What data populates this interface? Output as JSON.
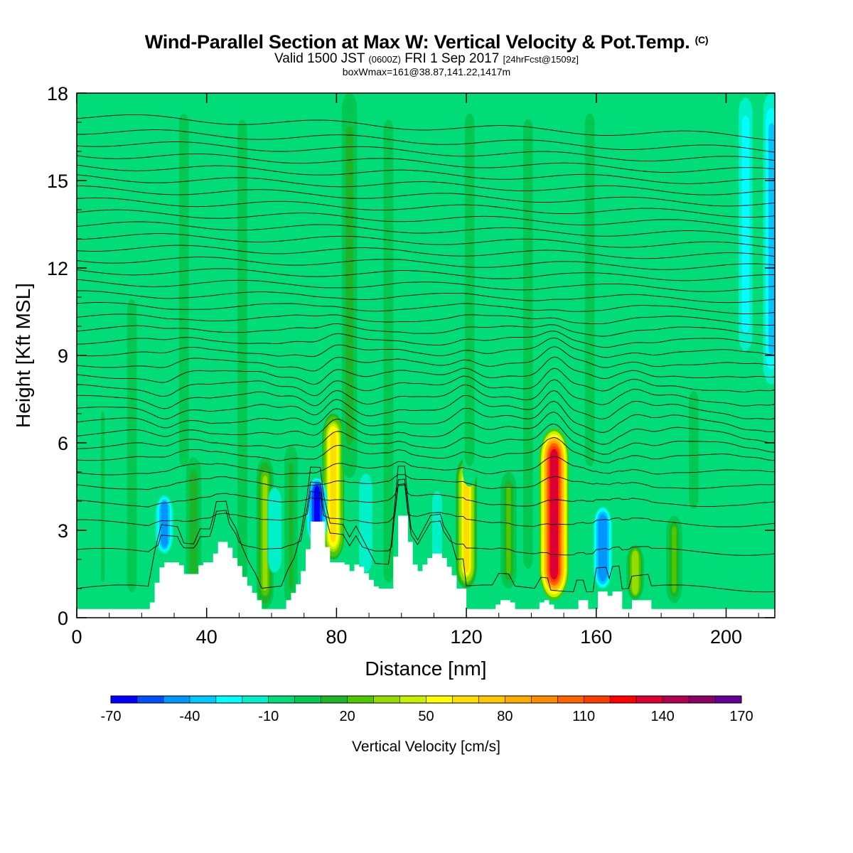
{
  "header": {
    "title": "Wind-Parallel Section at Max W: Vertical Velocity & Pot.Temp.",
    "copyright_mark": "(C)",
    "valid_prefix": "Valid 1500 JST",
    "valid_zulu": "(0600Z)",
    "valid_date": "FRI 1 Sep 2017",
    "forecast": "[24hrFcst@1509z]",
    "box_info": "boxWmax=161@38.87,141.22,1417m"
  },
  "chart_data": {
    "type": "heatmap",
    "title": "Wind-Parallel Section at Max W: Vertical Velocity & Pot.Temp.",
    "xlabel": "Distance [nm]",
    "ylabel": "Height [Kft MSL]",
    "xlim": [
      0,
      215
    ],
    "ylim": [
      0,
      18
    ],
    "xticks": [
      0,
      40,
      80,
      120,
      160,
      200
    ],
    "yticks": [
      0,
      3,
      6,
      9,
      12,
      15,
      18
    ],
    "background_value_cm_s": -5,
    "updrafts": [
      {
        "x": 8,
        "bottom": 0.3,
        "top": 8.0,
        "peak_cm_s": 0
      },
      {
        "x": 17,
        "bottom": 0.3,
        "top": 11.5,
        "peak_cm_s": 5
      },
      {
        "x": 33,
        "bottom": 4.5,
        "top": 18,
        "peak_cm_s": 5
      },
      {
        "x": 36,
        "bottom": 0.3,
        "top": 5.5,
        "peak_cm_s": 15
      },
      {
        "x": 51,
        "bottom": 0.3,
        "top": 18,
        "peak_cm_s": 5
      },
      {
        "x": 58,
        "bottom": 0.3,
        "top": 5.5,
        "peak_cm_s": 30
      },
      {
        "x": 66,
        "bottom": 0.3,
        "top": 6.0,
        "peak_cm_s": 10
      },
      {
        "x": 79,
        "bottom": 2.0,
        "top": 7.0,
        "peak_cm_s": 65
      },
      {
        "x": 84,
        "bottom": 4.8,
        "top": 18,
        "peak_cm_s": 15
      },
      {
        "x": 96,
        "bottom": 0.3,
        "top": 18,
        "peak_cm_s": 5
      },
      {
        "x": 120,
        "bottom": 1.0,
        "top": 5.5,
        "peak_cm_s": 60
      },
      {
        "x": 121,
        "bottom": 4.5,
        "top": 18,
        "peak_cm_s": 5
      },
      {
        "x": 133,
        "bottom": 1.0,
        "top": 5.0,
        "peak_cm_s": 20
      },
      {
        "x": 139,
        "bottom": 0.8,
        "top": 18,
        "peak_cm_s": 5
      },
      {
        "x": 147,
        "bottom": 0.6,
        "top": 6.5,
        "peak_cm_s": 130
      },
      {
        "x": 158,
        "bottom": 4.5,
        "top": 18,
        "peak_cm_s": 5
      },
      {
        "x": 172,
        "bottom": 0.6,
        "top": 2.5,
        "peak_cm_s": 35
      },
      {
        "x": 184,
        "bottom": 0.5,
        "top": 3.5,
        "peak_cm_s": 20
      },
      {
        "x": 190,
        "bottom": 3.5,
        "top": 8.0,
        "peak_cm_s": 5
      }
    ],
    "downdrafts": [
      {
        "x": 27,
        "bottom": 2.2,
        "top": 4.2,
        "peak_cm_s": -45
      },
      {
        "x": 61,
        "bottom": 1.5,
        "top": 4.5,
        "peak_cm_s": -20
      },
      {
        "x": 74,
        "bottom": 2.5,
        "top": 4.8,
        "peak_cm_s": -65
      },
      {
        "x": 89,
        "bottom": 1.5,
        "top": 5.0,
        "peak_cm_s": -20
      },
      {
        "x": 111,
        "bottom": 1.5,
        "top": 4.5,
        "peak_cm_s": -15
      },
      {
        "x": 162,
        "bottom": 1.0,
        "top": 3.8,
        "peak_cm_s": -50
      },
      {
        "x": 206,
        "bottom": 9.0,
        "top": 18,
        "peak_cm_s": -25
      },
      {
        "x": 214,
        "bottom": 8.0,
        "top": 18,
        "peak_cm_s": -35
      }
    ],
    "terrain_kft": [
      [
        0,
        0.3
      ],
      [
        22,
        0.3
      ],
      [
        24,
        1.2
      ],
      [
        26,
        1.9
      ],
      [
        31,
        1.9
      ],
      [
        33,
        1.5
      ],
      [
        36,
        1.5
      ],
      [
        38,
        1.9
      ],
      [
        41,
        1.9
      ],
      [
        42,
        2.2
      ],
      [
        43,
        2.6
      ],
      [
        46,
        2.6
      ],
      [
        47,
        2.2
      ],
      [
        49,
        1.9
      ],
      [
        51,
        1.4
      ],
      [
        53,
        1.0
      ],
      [
        55,
        0.7
      ],
      [
        57,
        0.3
      ],
      [
        63,
        0.3
      ],
      [
        65,
        0.7
      ],
      [
        67,
        1.0
      ],
      [
        69,
        1.6
      ],
      [
        71,
        2.6
      ],
      [
        72,
        3.3
      ],
      [
        75,
        3.3
      ],
      [
        76,
        2.6
      ],
      [
        78,
        1.9
      ],
      [
        82,
        1.9
      ],
      [
        84,
        1.6
      ],
      [
        86,
        1.9
      ],
      [
        88,
        1.6
      ],
      [
        90,
        1.3
      ],
      [
        92,
        1.0
      ],
      [
        96,
        1.0
      ],
      [
        97,
        1.6
      ],
      [
        98,
        2.6
      ],
      [
        99,
        3.5
      ],
      [
        101,
        3.5
      ],
      [
        102,
        2.6
      ],
      [
        103,
        1.9
      ],
      [
        105,
        1.6
      ],
      [
        107,
        1.9
      ],
      [
        109,
        2.2
      ],
      [
        112,
        2.2
      ],
      [
        113,
        1.9
      ],
      [
        115,
        1.6
      ],
      [
        117,
        1.0
      ],
      [
        119,
        1.0
      ],
      [
        120,
        0.3
      ],
      [
        128,
        0.3
      ],
      [
        130,
        0.6
      ],
      [
        133,
        0.6
      ],
      [
        135,
        0.3
      ],
      [
        141,
        0.3
      ],
      [
        143,
        0.6
      ],
      [
        145,
        0.6
      ],
      [
        146,
        0.3
      ],
      [
        153,
        0.3
      ],
      [
        154,
        0.6
      ],
      [
        156,
        0.6
      ],
      [
        157,
        0.3
      ],
      [
        159,
        0.3
      ],
      [
        160,
        0.9
      ],
      [
        163,
        0.9
      ],
      [
        164,
        0.6
      ],
      [
        165,
        0.9
      ],
      [
        167,
        0.9
      ],
      [
        168,
        0.3
      ],
      [
        170,
        0.3
      ],
      [
        171,
        0.6
      ],
      [
        176,
        0.6
      ],
      [
        177,
        0.3
      ],
      [
        215,
        0.3
      ]
    ],
    "isentropes": {
      "count": 36,
      "base_heights_kft": [
        0.9,
        2.2,
        3.2,
        3.9,
        4.5,
        5.0,
        5.5,
        5.9,
        6.3,
        6.7,
        7.1,
        7.5,
        7.9,
        8.3,
        8.7,
        9.1,
        9.5,
        9.9,
        10.3,
        10.7,
        11.1,
        11.5,
        11.9,
        12.3,
        12.7,
        13.1,
        13.5,
        13.9,
        14.3,
        14.7,
        15.1,
        15.5,
        15.9,
        16.3,
        16.7,
        17.2
      ]
    },
    "colorbar": {
      "label": "Vertical Velocity [cm/s]",
      "labels": [
        "-70",
        "-40",
        "-10",
        "20",
        "50",
        "80",
        "110",
        "140",
        "170"
      ],
      "levels": [
        -70,
        -60,
        -50,
        -40,
        -30,
        -20,
        -10,
        0,
        10,
        20,
        30,
        40,
        50,
        60,
        70,
        80,
        90,
        100,
        110,
        120,
        130,
        140,
        150,
        160,
        170
      ],
      "colors": [
        "#0000ff",
        "#0050ff",
        "#0096ff",
        "#00c8ff",
        "#00ffff",
        "#00f0c8",
        "#00dc78",
        "#00c850",
        "#1eb428",
        "#50c800",
        "#96dc00",
        "#c8f000",
        "#ffff00",
        "#ffdc00",
        "#ffc800",
        "#ffaa00",
        "#ff8c00",
        "#ff6400",
        "#ff3c00",
        "#ff0000",
        "#dc0032",
        "#b40050",
        "#8c0064",
        "#640096"
      ]
    }
  }
}
